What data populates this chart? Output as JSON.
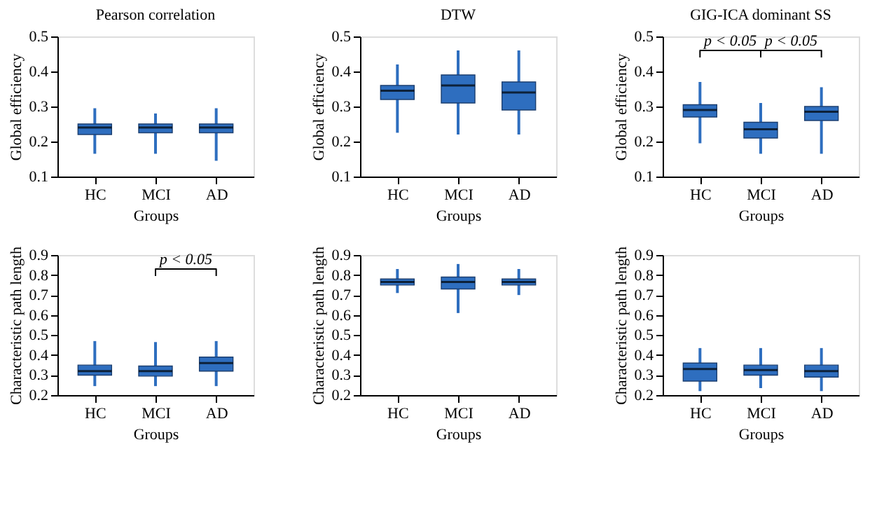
{
  "chart_data": [
    {
      "type": "box",
      "title": "Pearson correlation",
      "xlabel": "Groups",
      "ylabel": "Global efficiency",
      "categories": [
        "HC",
        "MCI",
        "AD"
      ],
      "color": "#2e6ebf",
      "ylim": [
        0.1,
        0.5
      ],
      "yticks": [
        0.1,
        0.2,
        0.3,
        0.4,
        0.5
      ],
      "grid": false,
      "boxes": [
        {
          "low": 0.165,
          "q1": 0.22,
          "median": 0.24,
          "q3": 0.25,
          "high": 0.295
        },
        {
          "low": 0.165,
          "q1": 0.225,
          "median": 0.24,
          "q3": 0.25,
          "high": 0.28
        },
        {
          "low": 0.145,
          "q1": 0.225,
          "median": 0.24,
          "q3": 0.25,
          "high": 0.295
        }
      ]
    },
    {
      "type": "box",
      "title": "DTW",
      "xlabel": "Groups",
      "ylabel": "Global efficiency",
      "categories": [
        "HC",
        "MCI",
        "AD"
      ],
      "color": "#2e6ebf",
      "ylim": [
        0.1,
        0.5
      ],
      "yticks": [
        0.1,
        0.2,
        0.3,
        0.4,
        0.5
      ],
      "grid": false,
      "boxes": [
        {
          "low": 0.225,
          "q1": 0.32,
          "median": 0.345,
          "q3": 0.36,
          "high": 0.42
        },
        {
          "low": 0.22,
          "q1": 0.31,
          "median": 0.36,
          "q3": 0.39,
          "high": 0.46
        },
        {
          "low": 0.22,
          "q1": 0.29,
          "median": 0.34,
          "q3": 0.37,
          "high": 0.46
        }
      ]
    },
    {
      "type": "box",
      "title": "GIG-ICA dominant SS",
      "xlabel": "Groups",
      "ylabel": "Global efficiency",
      "categories": [
        "HC",
        "MCI",
        "AD"
      ],
      "color": "#2e6ebf",
      "ylim": [
        0.1,
        0.5
      ],
      "yticks": [
        0.1,
        0.2,
        0.3,
        0.4,
        0.5
      ],
      "grid": false,
      "annotations": [
        "p < 0.05",
        "p < 0.05"
      ],
      "boxes": [
        {
          "low": 0.195,
          "q1": 0.27,
          "median": 0.29,
          "q3": 0.305,
          "high": 0.37
        },
        {
          "low": 0.165,
          "q1": 0.21,
          "median": 0.235,
          "q3": 0.255,
          "high": 0.31
        },
        {
          "low": 0.165,
          "q1": 0.26,
          "median": 0.285,
          "q3": 0.3,
          "high": 0.355
        }
      ]
    },
    {
      "type": "box",
      "xlabel": "Groups",
      "ylabel": "Characteristic path length",
      "categories": [
        "HC",
        "MCI",
        "AD"
      ],
      "color": "#2e6ebf",
      "ylim": [
        0.2,
        0.9
      ],
      "yticks": [
        0.2,
        0.3,
        0.4,
        0.5,
        0.6,
        0.7,
        0.8,
        0.9
      ],
      "grid": false,
      "annotations": [
        "p < 0.05"
      ],
      "boxes": [
        {
          "low": 0.245,
          "q1": 0.3,
          "median": 0.32,
          "q3": 0.35,
          "high": 0.47
        },
        {
          "low": 0.245,
          "q1": 0.295,
          "median": 0.32,
          "q3": 0.345,
          "high": 0.465
        },
        {
          "low": 0.245,
          "q1": 0.32,
          "median": 0.36,
          "q3": 0.39,
          "high": 0.47
        }
      ]
    },
    {
      "type": "box",
      "xlabel": "Groups",
      "ylabel": "Characteristic path length",
      "categories": [
        "HC",
        "MCI",
        "AD"
      ],
      "color": "#2e6ebf",
      "ylim": [
        0.2,
        0.9
      ],
      "yticks": [
        0.2,
        0.3,
        0.4,
        0.5,
        0.6,
        0.7,
        0.8,
        0.9
      ],
      "grid": false,
      "boxes": [
        {
          "low": 0.71,
          "q1": 0.75,
          "median": 0.765,
          "q3": 0.78,
          "high": 0.83
        },
        {
          "low": 0.61,
          "q1": 0.73,
          "median": 0.765,
          "q3": 0.79,
          "high": 0.855
        },
        {
          "low": 0.7,
          "q1": 0.75,
          "median": 0.765,
          "q3": 0.78,
          "high": 0.83
        }
      ]
    },
    {
      "type": "box",
      "xlabel": "Groups",
      "ylabel": "Characteristic path length",
      "categories": [
        "HC",
        "MCI",
        "AD"
      ],
      "color": "#2e6ebf",
      "ylim": [
        0.2,
        0.9
      ],
      "yticks": [
        0.2,
        0.3,
        0.4,
        0.5,
        0.6,
        0.7,
        0.8,
        0.9
      ],
      "grid": false,
      "boxes": [
        {
          "low": 0.22,
          "q1": 0.27,
          "median": 0.33,
          "q3": 0.36,
          "high": 0.435
        },
        {
          "low": 0.235,
          "q1": 0.3,
          "median": 0.325,
          "q3": 0.35,
          "high": 0.435
        },
        {
          "low": 0.22,
          "q1": 0.29,
          "median": 0.32,
          "q3": 0.35,
          "high": 0.435
        }
      ]
    }
  ]
}
